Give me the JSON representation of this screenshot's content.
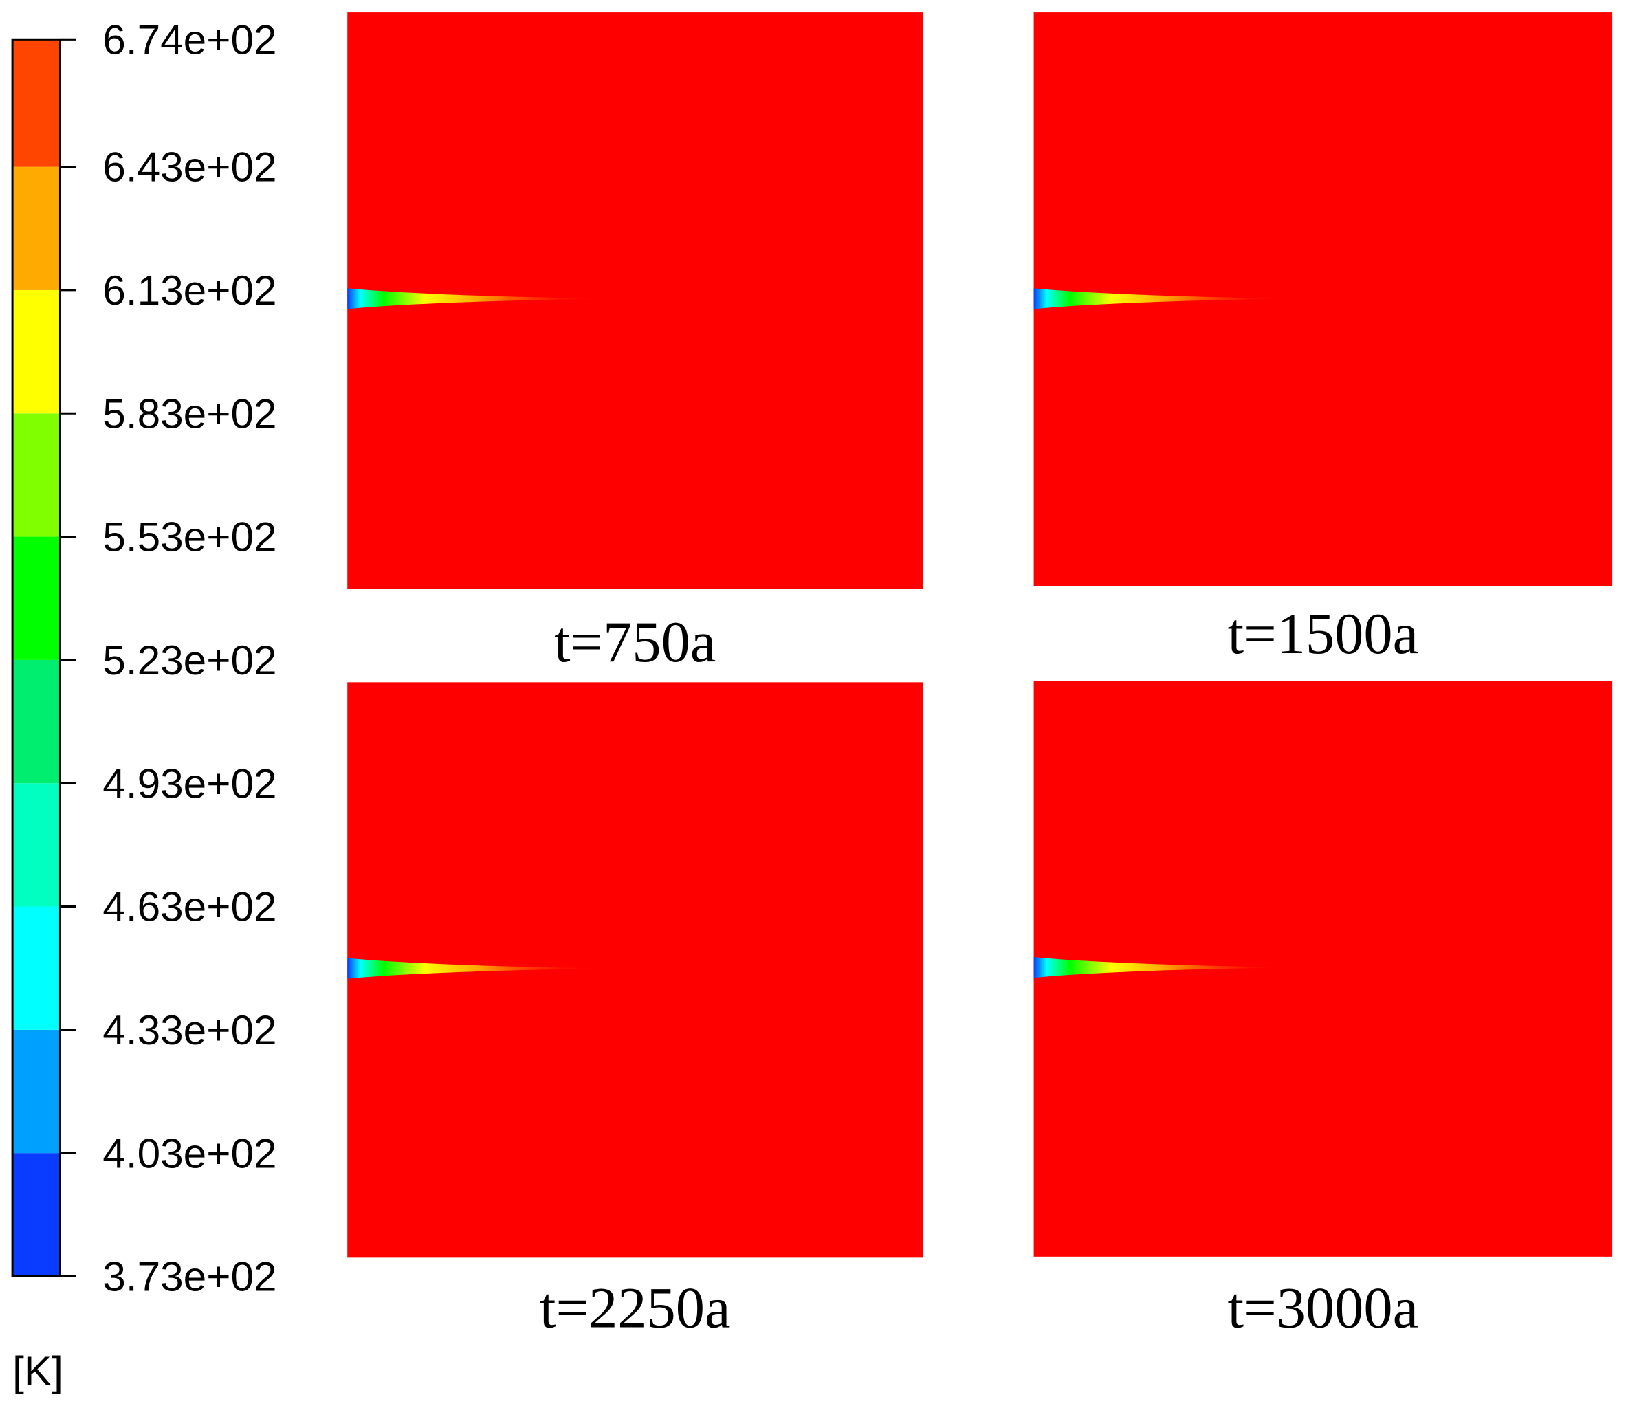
{
  "chart_data": {
    "type": "contour",
    "unit": "[K]",
    "clim": [
      373,
      674
    ],
    "ticks": [
      {
        "value": 373,
        "label": "3.73e+02"
      },
      {
        "value": 403,
        "label": "4.03e+02"
      },
      {
        "value": 433,
        "label": "4.33e+02"
      },
      {
        "value": 463,
        "label": "4.63e+02"
      },
      {
        "value": 493,
        "label": "4.93e+02"
      },
      {
        "value": 523,
        "label": "5.23e+02"
      },
      {
        "value": 553,
        "label": "5.53e+02"
      },
      {
        "value": 583,
        "label": "5.83e+02"
      },
      {
        "value": 613,
        "label": "6.13e+02"
      },
      {
        "value": 643,
        "label": "6.43e+02"
      },
      {
        "value": 674,
        "label": "6.74e+02"
      }
    ],
    "colors": [
      "#0a3cff",
      "#00a0ff",
      "#00ffff",
      "#00ffc0",
      "#00ee70",
      "#00ff00",
      "#80ff00",
      "#ffff00",
      "#ffaa00",
      "#ff4500"
    ],
    "field_color": "#ff0000",
    "panels": [
      {
        "label": "t=750a"
      },
      {
        "label": "t=1500a"
      },
      {
        "label": "t=2250a"
      },
      {
        "label": "t=3000a"
      }
    ]
  }
}
